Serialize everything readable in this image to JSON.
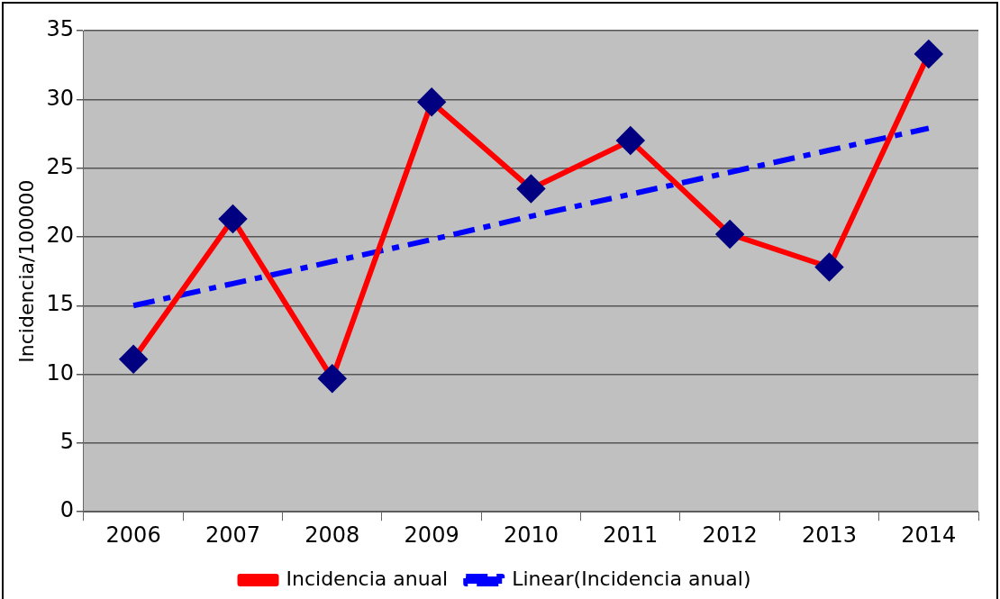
{
  "chart_data": {
    "type": "line",
    "ylabel": "Incidencia/100000",
    "categories": [
      "2006",
      "2007",
      "2008",
      "2009",
      "2010",
      "2011",
      "2012",
      "2013",
      "2014"
    ],
    "series": [
      {
        "name": "Incidencia anual",
        "color": "#ff0000",
        "values": [
          11.1,
          21.3,
          9.7,
          29.8,
          23.5,
          27.0,
          20.2,
          17.8,
          33.3
        ],
        "marker": "diamond",
        "line_style": "solid"
      },
      {
        "name": "Linear(Incidencia anual)",
        "color": "#0000ff",
        "values": [
          15.0,
          16.6,
          18.2,
          19.8,
          21.5,
          23.1,
          24.7,
          26.3,
          27.9
        ],
        "marker": "none",
        "line_style": "dashed"
      }
    ],
    "ylim": [
      0,
      35
    ],
    "yticks": [
      0,
      5,
      10,
      15,
      20,
      25,
      30,
      35
    ],
    "grid": "y",
    "legend": "bottom"
  }
}
